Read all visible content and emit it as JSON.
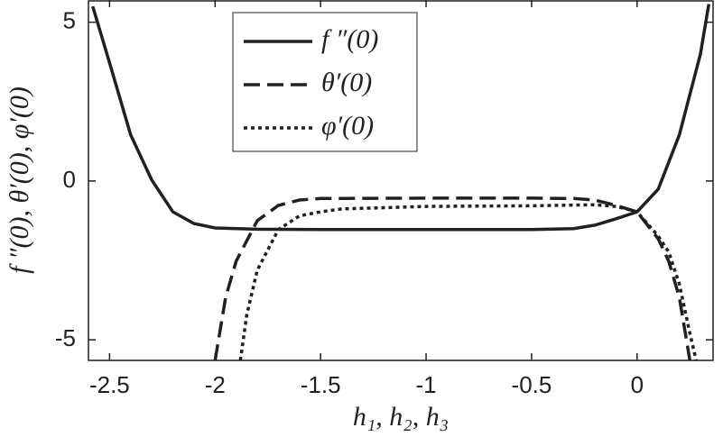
{
  "chart_data": {
    "type": "line",
    "xlabel": "h₁, h₂, h₃",
    "ylabel": "f ″(0),  θ′(0),  φ′(0)",
    "xlim": [
      -2.6,
      0.36
    ],
    "ylim": [
      -5.65,
      5.7
    ],
    "xticks": [
      -2.5,
      -2,
      -1.5,
      -1,
      -0.5,
      0
    ],
    "yticks": [
      -5,
      0,
      5
    ],
    "grid": false,
    "legend": "top",
    "series": [
      {
        "name": "f ″(0)",
        "color": "#231f20",
        "style": "solid",
        "x": [
          -2.58,
          -2.5,
          -2.4,
          -2.3,
          -2.2,
          -2.1,
          -2.0,
          -1.8,
          -1.5,
          -1.0,
          -0.5,
          -0.3,
          -0.2,
          -0.1,
          0,
          0.1,
          0.2,
          0.3,
          0.34
        ],
        "values": [
          5.5,
          3.72,
          1.45,
          0.03,
          -0.97,
          -1.34,
          -1.48,
          -1.52,
          -1.53,
          -1.53,
          -1.53,
          -1.5,
          -1.39,
          -1.19,
          -0.97,
          -0.26,
          1.45,
          4.0,
          5.57
        ]
      },
      {
        "name": "θ′(0)",
        "color": "#231f20",
        "style": "dashed",
        "x": [
          -2.0,
          -1.95,
          -1.9,
          -1.8,
          -1.7,
          -1.6,
          -1.5,
          -1.0,
          -0.5,
          -0.3,
          -0.2,
          -0.1,
          0,
          0.1,
          0.15,
          0.2,
          0.25
        ],
        "values": [
          -5.65,
          -3.66,
          -2.53,
          -1.25,
          -0.77,
          -0.6,
          -0.55,
          -0.54,
          -0.54,
          -0.55,
          -0.6,
          -0.77,
          -0.97,
          -1.82,
          -2.53,
          -3.66,
          -5.65
        ]
      },
      {
        "name": "φ′(0)",
        "color": "#231f20",
        "style": "dotted",
        "x": [
          -1.88,
          -1.85,
          -1.8,
          -1.7,
          -1.6,
          -1.5,
          -1.4,
          -1.0,
          -0.5,
          -0.2,
          -0.1,
          0,
          0.1,
          0.15,
          0.2,
          0.25,
          0.28
        ],
        "values": [
          -5.65,
          -4.23,
          -2.81,
          -1.53,
          -1.1,
          -0.97,
          -0.88,
          -0.8,
          -0.78,
          -0.75,
          -0.8,
          -0.97,
          -1.73,
          -2.24,
          -3.24,
          -4.8,
          -5.65
        ]
      }
    ]
  }
}
